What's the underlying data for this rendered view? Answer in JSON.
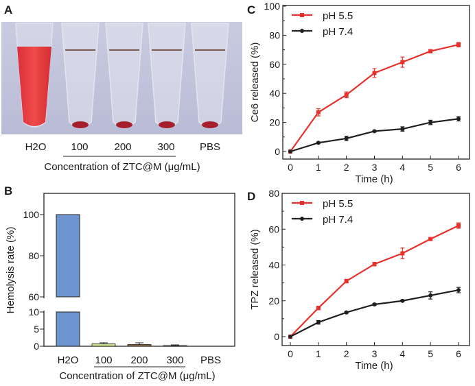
{
  "panels": {
    "A": {
      "label": "A",
      "tube_labels": [
        "H2O",
        "100",
        "200",
        "300",
        "PBS"
      ],
      "xlabel": "Concentration of  ZTC@M (μg/mL)"
    }
  },
  "chart_data": [
    {
      "panel": "B",
      "type": "bar",
      "title": "",
      "categories": [
        "H2O",
        "100",
        "200",
        "300",
        "PBS"
      ],
      "values": [
        100,
        0.7,
        0.5,
        0.2,
        0
      ],
      "errors": [
        0,
        0.3,
        0.5,
        0.2,
        0
      ],
      "colors": [
        "#6f95d0",
        "#c9e08a",
        "#8a6a45",
        "#555555",
        "#cccccc"
      ],
      "xlabel": "Concentration of  ZTC@M (μg/mL)",
      "ylabel": "Hemolysis rate (%)",
      "ylim": [
        0,
        110
      ],
      "axis_break": [
        10,
        60
      ],
      "yticks_low": [
        0,
        5,
        10
      ],
      "yticks_high": [
        60,
        80,
        100
      ],
      "ytick_labels": [
        "0",
        "5",
        "10",
        "60",
        "80",
        "100"
      ],
      "grid": false
    },
    {
      "panel": "C",
      "type": "line",
      "x": [
        0,
        1,
        2,
        3,
        4,
        5,
        6
      ],
      "xticks": [
        "0",
        "1",
        "2",
        "3",
        "4",
        "5",
        "6"
      ],
      "yticks": [
        "0",
        "20",
        "40",
        "60",
        "80",
        "100"
      ],
      "series": [
        {
          "name": "pH 5.5",
          "color": "#e8302a",
          "marker": "square",
          "values": [
            0,
            27,
            39,
            54,
            61.5,
            69,
            73.5
          ],
          "errors": [
            0,
            2.5,
            2,
            3,
            3.5,
            1,
            1.5
          ]
        },
        {
          "name": "pH 7.4",
          "color": "#1f1f1f",
          "marker": "circle",
          "values": [
            0,
            6,
            9,
            14,
            15.5,
            20,
            22.5
          ],
          "errors": [
            0,
            0.5,
            1.5,
            0.5,
            1.5,
            1.5,
            1.5
          ]
        }
      ],
      "xlabel": "Time (h)",
      "ylabel": "Ce6 released (%)",
      "xlim": [
        -0.3,
        6.6
      ],
      "ylim": [
        -5,
        100
      ],
      "legend": "top-left",
      "grid": false
    },
    {
      "panel": "D",
      "type": "line",
      "x": [
        0,
        1,
        2,
        3,
        4,
        5,
        6
      ],
      "xticks": [
        "0",
        "1",
        "2",
        "3",
        "4",
        "5",
        "6"
      ],
      "yticks": [
        "0",
        "20",
        "40",
        "60",
        "80"
      ],
      "series": [
        {
          "name": "pH 5.5",
          "color": "#e8302a",
          "marker": "square",
          "values": [
            0,
            16,
            31,
            40.5,
            46.5,
            54.5,
            62
          ],
          "errors": [
            0,
            1,
            1,
            1,
            3,
            0.5,
            1.5
          ]
        },
        {
          "name": "pH 7.4",
          "color": "#1f1f1f",
          "marker": "circle",
          "values": [
            0,
            8,
            13.5,
            18,
            20,
            23,
            26
          ],
          "errors": [
            0,
            1,
            0.5,
            0.5,
            0.5,
            2,
            1.5
          ]
        }
      ],
      "xlabel": "Time (h)",
      "ylabel": "TPZ released (%)",
      "xlim": [
        -0.3,
        6.6
      ],
      "ylim": [
        -5,
        80
      ],
      "legend": "top-left",
      "grid": false
    }
  ],
  "labels": {
    "B": "B",
    "C": "C",
    "D": "D"
  }
}
